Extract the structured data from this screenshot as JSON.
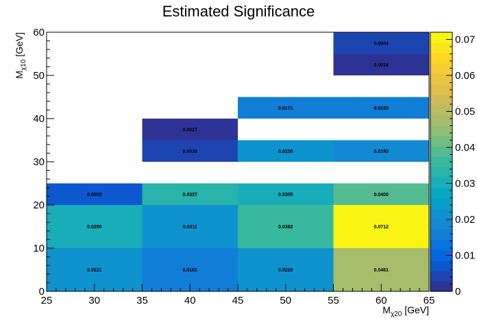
{
  "chart_data": {
    "type": "heatmap",
    "title": "Estimated Significance",
    "xlabel": {
      "main": "M",
      "sub": "χ20",
      "unit": " [GeV]"
    },
    "ylabel": {
      "main": "M",
      "sub": "χ10",
      "unit": " [GeV]"
    },
    "xlim": [
      25,
      65
    ],
    "ylim": [
      0,
      60
    ],
    "zlim": [
      0,
      0.072
    ],
    "x_ticks": [
      "25",
      "30",
      "35",
      "40",
      "45",
      "50",
      "55",
      "60",
      "65"
    ],
    "y_ticks": [
      "0",
      "10",
      "20",
      "30",
      "40",
      "50",
      "60"
    ],
    "z_ticks": [
      "0",
      "0.01",
      "0.02",
      "0.03",
      "0.04",
      "0.05",
      "0.06",
      "0.07"
    ],
    "palette": [
      "#352a87",
      "#0363e1",
      "#1485d4",
      "#06a7c6",
      "#38b99e",
      "#92bf73",
      "#d9ba56",
      "#fcce2e",
      "#f9fb0e"
    ],
    "cells": [
      {
        "x0": 25,
        "x1": 35,
        "y0": 0,
        "y1": 10,
        "value": 0.0221,
        "label": "0.0221"
      },
      {
        "x0": 35,
        "x1": 45,
        "y0": 0,
        "y1": 10,
        "value": 0.0161,
        "label": "0.0161"
      },
      {
        "x0": 45,
        "x1": 55,
        "y0": 0,
        "y1": 10,
        "value": 0.0229,
        "label": "0.0229"
      },
      {
        "x0": 55,
        "x1": 65,
        "y0": 0,
        "y1": 10,
        "value": 0.0461,
        "label": "0.0461"
      },
      {
        "x0": 25,
        "x1": 35,
        "y0": 10,
        "y1": 20,
        "value": 0.029,
        "label": "0.0290"
      },
      {
        "x0": 35,
        "x1": 45,
        "y0": 10,
        "y1": 20,
        "value": 0.0211,
        "label": "0.0211"
      },
      {
        "x0": 45,
        "x1": 55,
        "y0": 10,
        "y1": 20,
        "value": 0.0362,
        "label": "0.0362"
      },
      {
        "x0": 55,
        "x1": 65,
        "y0": 10,
        "y1": 20,
        "value": 0.0712,
        "label": "0.0712"
      },
      {
        "x0": 25,
        "x1": 35,
        "y0": 20,
        "y1": 25,
        "value": 0.0082,
        "label": "0.0082"
      },
      {
        "x0": 35,
        "x1": 45,
        "y0": 20,
        "y1": 25,
        "value": 0.0327,
        "label": "0.0327"
      },
      {
        "x0": 45,
        "x1": 55,
        "y0": 20,
        "y1": 25,
        "value": 0.0305,
        "label": "0.0305"
      },
      {
        "x0": 55,
        "x1": 65,
        "y0": 20,
        "y1": 25,
        "value": 0.04,
        "label": "0.0400"
      },
      {
        "x0": 35,
        "x1": 45,
        "y0": 30,
        "y1": 35,
        "value": 0.0039,
        "label": "0.0039"
      },
      {
        "x0": 45,
        "x1": 55,
        "y0": 30,
        "y1": 35,
        "value": 0.023,
        "label": "0.0230"
      },
      {
        "x0": 55,
        "x1": 65,
        "y0": 30,
        "y1": 35,
        "value": 0.0193,
        "label": "0.0193"
      },
      {
        "x0": 35,
        "x1": 45,
        "y0": 35,
        "y1": 40,
        "value": 0.0027,
        "label": "0.0027"
      },
      {
        "x0": 45,
        "x1": 55,
        "y0": 40,
        "y1": 45,
        "value": 0.0171,
        "label": "0.0171"
      },
      {
        "x0": 55,
        "x1": 65,
        "y0": 40,
        "y1": 45,
        "value": 0.0163,
        "label": "0.0163"
      },
      {
        "x0": 55,
        "x1": 65,
        "y0": 50,
        "y1": 55,
        "value": 0.0016,
        "label": "0.0016"
      },
      {
        "x0": 55,
        "x1": 65,
        "y0": 55,
        "y1": 60,
        "value": 0.0044,
        "label": "0.0044"
      }
    ]
  }
}
